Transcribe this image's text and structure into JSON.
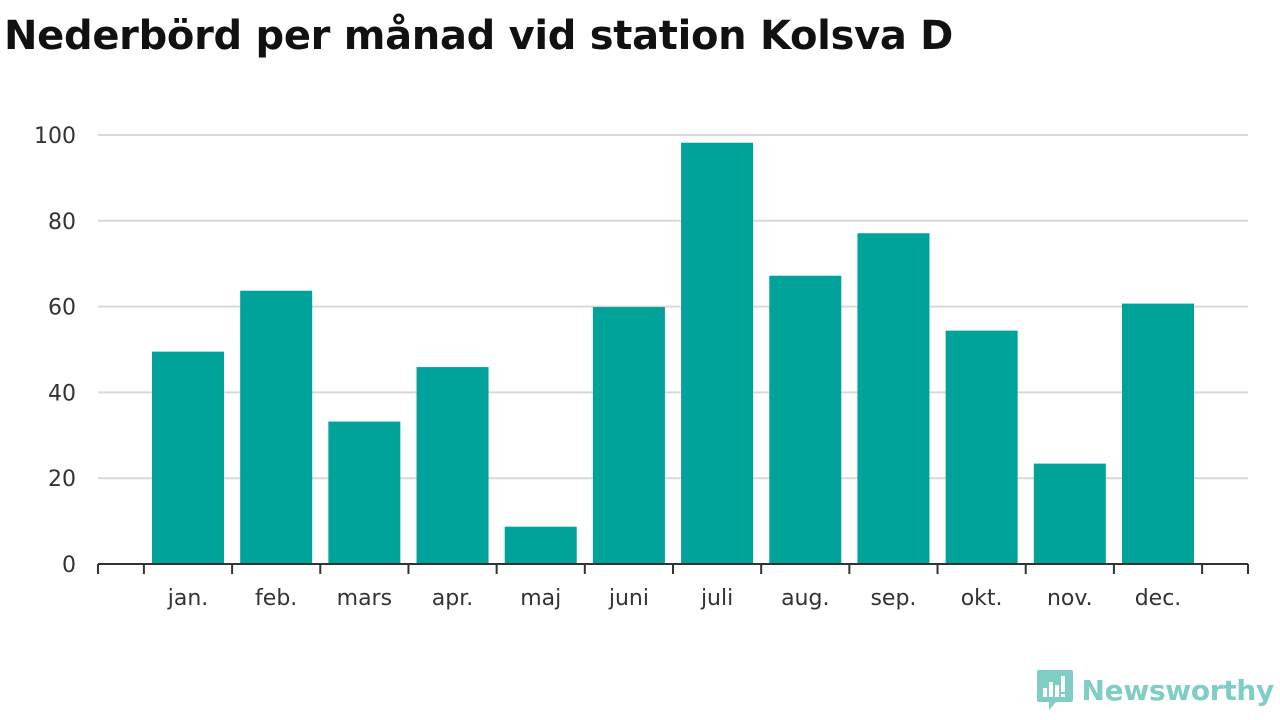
{
  "title": "Nederbörd per månad vid station Kolsva D",
  "brand": {
    "name": "Newsworthy",
    "color": "#7fcdc5"
  },
  "colors": {
    "bar": "#00a39a",
    "grid": "#d9d9d9",
    "axis": "#333333"
  },
  "chart_data": {
    "type": "bar",
    "title": "Nederbörd per månad vid station Kolsva D",
    "xlabel": "",
    "ylabel": "",
    "categories": [
      "jan.",
      "feb.",
      "mars",
      "apr.",
      "maj",
      "juni",
      "juli",
      "aug.",
      "sep.",
      "okt.",
      "nov.",
      "dec."
    ],
    "values": [
      49.5,
      63.7,
      33.2,
      45.9,
      8.7,
      59.9,
      98.2,
      67.2,
      77.1,
      54.4,
      23.4,
      60.7
    ],
    "ylim": [
      0,
      100
    ],
    "yticks": [
      0,
      20,
      40,
      60,
      80,
      100
    ],
    "grid": true,
    "legend": "none"
  }
}
